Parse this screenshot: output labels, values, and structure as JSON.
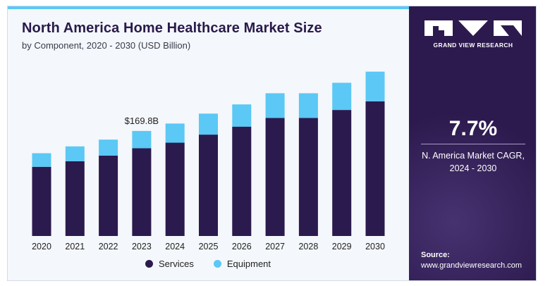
{
  "header": {
    "title": "North America Home Healthcare Market Size",
    "subtitle": "by Component, 2020 - 2030 (USD Billion)"
  },
  "legend": {
    "services": "Services",
    "equipment": "Equipment"
  },
  "colors": {
    "services": "#2b1a4d",
    "equipment": "#5bc8f5",
    "panel": "#2c1a4e"
  },
  "panel": {
    "brand": "GRAND VIEW RESEARCH",
    "cagr_value": "7.7%",
    "cagr_label_line1": "N. America Market CAGR,",
    "cagr_label_line2": "2024 - 2030",
    "source_title": "Source:",
    "source_url": "www.grandviewresearch.com"
  },
  "chart_data": {
    "type": "bar",
    "stacked": true,
    "title": "North America Home Healthcare Market Size",
    "subtitle": "by Component, 2020 - 2030 (USD Billion)",
    "categories": [
      "2020",
      "2021",
      "2022",
      "2023",
      "2024",
      "2025",
      "2026",
      "2027",
      "2028",
      "2029",
      "2030"
    ],
    "series": [
      {
        "name": "Services",
        "values": [
          112,
          121,
          130,
          142,
          151,
          164,
          177,
          191,
          191,
          204,
          218
        ]
      },
      {
        "name": "Equipment",
        "values": [
          22,
          24,
          26,
          28,
          31,
          34,
          36,
          40,
          40,
          44,
          48
        ]
      }
    ],
    "annotations": [
      {
        "category": "2023",
        "label": "$169.8B"
      }
    ],
    "legend_position": "bottom",
    "grid": false,
    "ylim": [
      0,
      285
    ]
  }
}
